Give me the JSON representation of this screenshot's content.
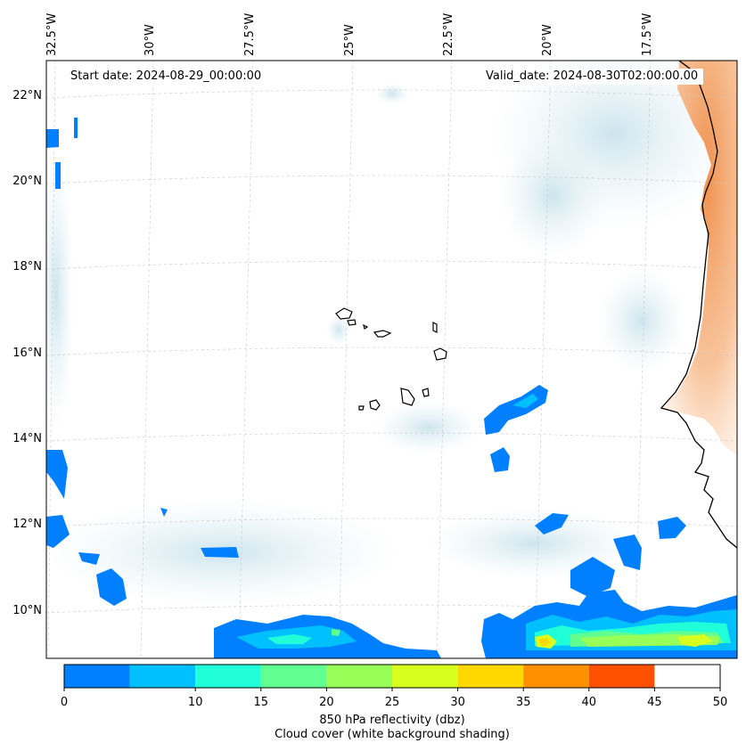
{
  "map": {
    "start_date_label": "Start date: 2024-08-29_00:00:00",
    "valid_date_label": "Valid_date: 2024-08-30T02:00:00.00",
    "lon_labels": [
      "32.5°W",
      "30°W",
      "27.5°W",
      "25°W",
      "22.5°W",
      "20°W",
      "17.5°W"
    ],
    "lat_labels": [
      "22°N",
      "20°N",
      "18°N",
      "16°N",
      "14°N",
      "12°N",
      "10°N"
    ],
    "extent": {
      "lon_min": -33,
      "lon_max": -15.5,
      "lat_min": 8.9,
      "lat_max": 22.8
    },
    "gridlines": true,
    "ocean_color": "#ffffff",
    "coastline_color": "#000000",
    "land_dust_color": "#f4a66a",
    "cloud_shading_color": "#d7eaf1"
  },
  "colorbar": {
    "ticks": [
      "0",
      "5",
      "10",
      "15",
      "20",
      "25",
      "30",
      "35",
      "40",
      "45",
      "50"
    ],
    "tick_labels_shown": [
      "0",
      "10",
      "15",
      "20",
      "25",
      "30",
      "35",
      "40",
      "45",
      "50"
    ],
    "colors": [
      "#0080ff",
      "#00c0ff",
      "#20ffd8",
      "#60ff90",
      "#98ff58",
      "#d8ff20",
      "#ffd800",
      "#ff9000",
      "#ff5000"
    ],
    "boundaries": [
      5,
      10,
      15,
      20,
      25,
      30,
      35,
      40,
      45,
      50
    ],
    "label_line1": "850 hPa reflectivity (dbz)",
    "label_line2": "Cloud cover (white background shading)"
  }
}
